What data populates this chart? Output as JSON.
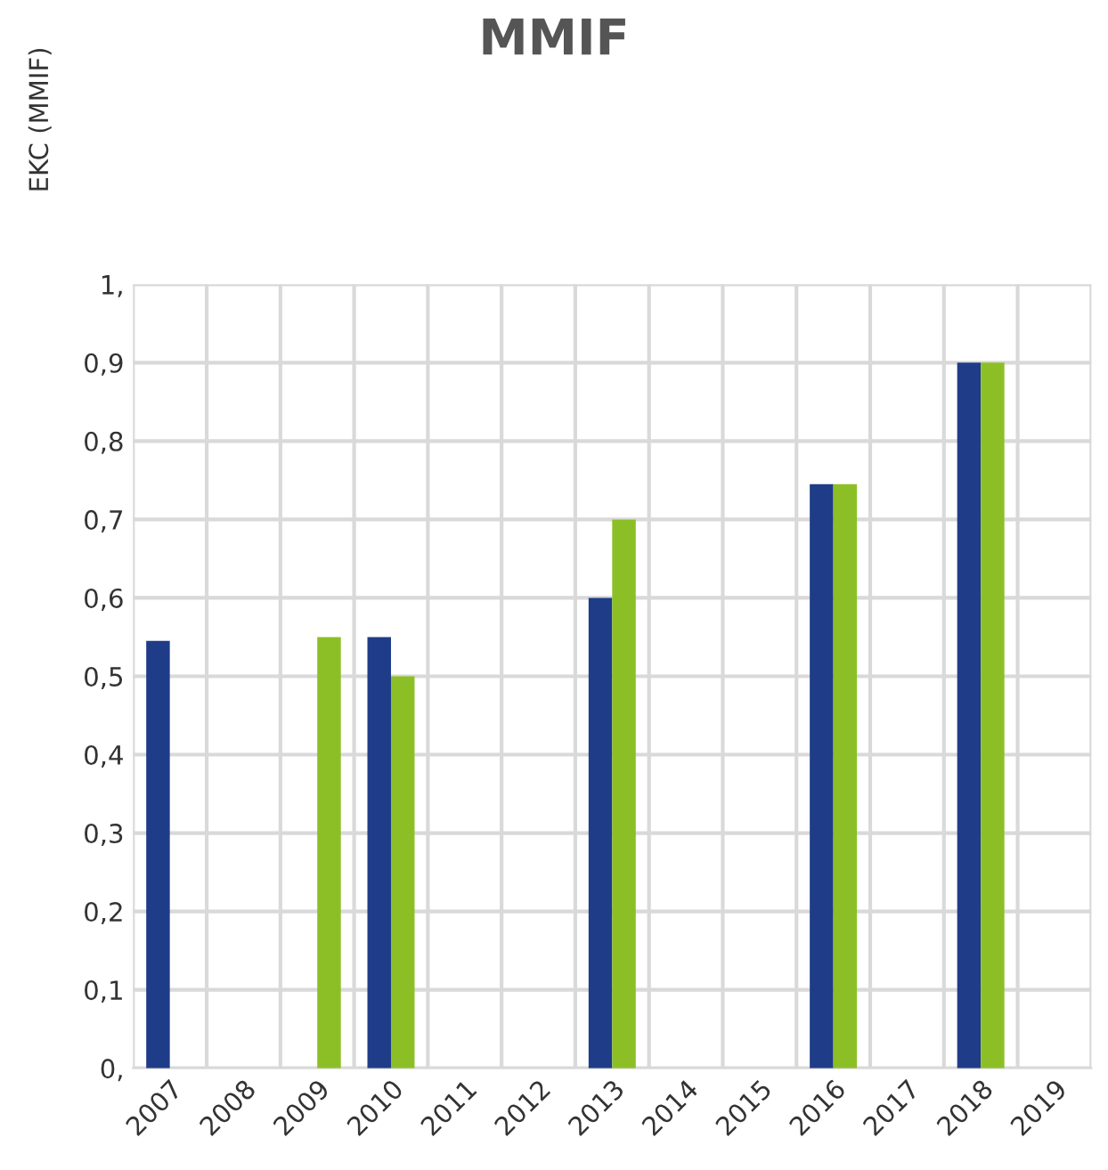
{
  "chart_data": {
    "type": "bar",
    "title": "MMIF",
    "ylabel": "EKC (MMIF)",
    "categories": [
      "2007",
      "2008",
      "2009",
      "2010",
      "2011",
      "2012",
      "2013",
      "2014",
      "2015",
      "2016",
      "2017",
      "2018",
      "2019"
    ],
    "series": [
      {
        "color": "#1f3c88",
        "values": [
          0.545,
          null,
          null,
          0.55,
          null,
          null,
          0.6,
          null,
          null,
          0.745,
          null,
          0.9,
          null
        ]
      },
      {
        "color": "#8cbf26",
        "values": [
          null,
          null,
          0.55,
          0.5,
          null,
          null,
          0.7,
          null,
          null,
          0.745,
          null,
          0.9,
          null
        ]
      }
    ],
    "ylim": [
      0,
      1
    ],
    "yticks": [
      {
        "value": 0,
        "label": "0,"
      },
      {
        "value": 0.1,
        "label": "0,1"
      },
      {
        "value": 0.2,
        "label": "0,2"
      },
      {
        "value": 0.3,
        "label": "0,3"
      },
      {
        "value": 0.4,
        "label": "0,4"
      },
      {
        "value": 0.5,
        "label": "0,5"
      },
      {
        "value": 0.6,
        "label": "0,6"
      },
      {
        "value": 0.7,
        "label": "0,7"
      },
      {
        "value": 0.8,
        "label": "0,8"
      },
      {
        "value": 0.9,
        "label": "0,9"
      },
      {
        "value": 1,
        "label": "1,"
      }
    ],
    "grid": true
  }
}
